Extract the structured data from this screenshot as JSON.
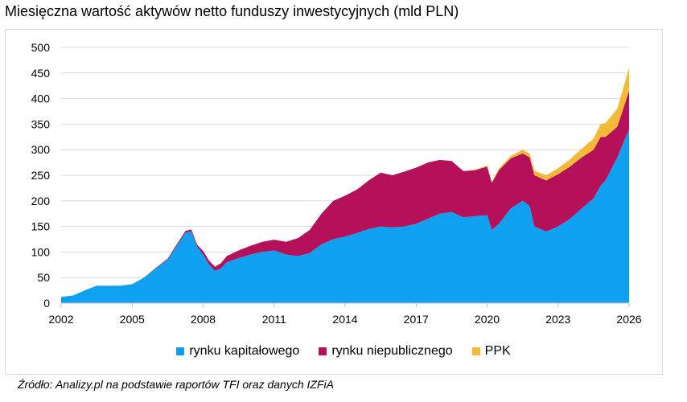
{
  "title": "Miesięczna wartość aktywów netto funduszy inwestycyjnych (mld PLN)",
  "source": "Źródło: Analizy.pl na podstawie raportów TFI oraz danych IZFiA",
  "chart_data": {
    "type": "area",
    "stacked": true,
    "title": "Miesięczna wartość aktywów netto funduszy inwestycyjnych (mld PLN)",
    "xlabel": "",
    "ylabel": "",
    "xlim": [
      2002,
      2026
    ],
    "ylim": [
      0,
      500
    ],
    "x_ticks": [
      "2002",
      "2005",
      "2008",
      "2011",
      "2014",
      "2017",
      "2020",
      "2023",
      "2026"
    ],
    "y_ticks": [
      "0",
      "50",
      "100",
      "150",
      "200",
      "250",
      "300",
      "350",
      "400",
      "450",
      "500"
    ],
    "grid": "horizontal",
    "legend_position": "bottom",
    "x": [
      2002.0,
      2002.5,
      2003.0,
      2003.5,
      2004.0,
      2004.5,
      2005.0,
      2005.5,
      2006.0,
      2006.5,
      2007.0,
      2007.25,
      2007.5,
      2007.75,
      2008.0,
      2008.25,
      2008.5,
      2008.75,
      2009.0,
      2009.5,
      2010.0,
      2010.5,
      2011.0,
      2011.5,
      2012.0,
      2012.5,
      2013.0,
      2013.5,
      2014.0,
      2014.5,
      2015.0,
      2015.5,
      2016.0,
      2016.5,
      2017.0,
      2017.5,
      2018.0,
      2018.5,
      2019.0,
      2019.5,
      2020.0,
      2020.2,
      2020.5,
      2021.0,
      2021.5,
      2021.8,
      2022.0,
      2022.5,
      2023.0,
      2023.5,
      2024.0,
      2024.5,
      2024.8,
      2025.0,
      2025.5,
      2026.0
    ],
    "series": [
      {
        "name": "rynku kapitałowego",
        "color": "#0fa0f0",
        "values": [
          12,
          15,
          25,
          34,
          34,
          34,
          37,
          50,
          68,
          85,
          120,
          138,
          140,
          110,
          95,
          75,
          63,
          68,
          80,
          88,
          95,
          100,
          103,
          95,
          92,
          98,
          115,
          125,
          130,
          137,
          145,
          150,
          148,
          150,
          155,
          165,
          175,
          178,
          168,
          170,
          172,
          143,
          155,
          185,
          200,
          190,
          150,
          140,
          150,
          165,
          185,
          205,
          230,
          240,
          285,
          340
        ]
      },
      {
        "name": "rynku niepublicznego",
        "color": "#b5115a",
        "values": [
          0,
          0,
          0,
          0,
          0,
          0,
          0,
          0,
          1,
          2,
          3,
          3,
          4,
          4,
          7,
          8,
          8,
          10,
          12,
          15,
          17,
          20,
          21,
          25,
          35,
          45,
          60,
          75,
          80,
          85,
          95,
          105,
          102,
          107,
          110,
          110,
          105,
          100,
          90,
          90,
          95,
          92,
          105,
          98,
          93,
          95,
          100,
          100,
          102,
          102,
          100,
          95,
          95,
          85,
          60,
          75
        ]
      },
      {
        "name": "PPK",
        "color": "#f5b93a",
        "values": [
          0,
          0,
          0,
          0,
          0,
          0,
          0,
          0,
          0,
          0,
          0,
          0,
          0,
          0,
          0,
          0,
          0,
          0,
          0,
          0,
          0,
          0,
          0,
          0,
          0,
          0,
          0,
          0,
          0,
          0,
          0,
          0,
          0,
          0,
          0,
          0,
          0,
          0,
          0,
          1,
          2,
          2,
          3,
          5,
          7,
          8,
          9,
          10,
          12,
          14,
          17,
          22,
          25,
          27,
          35,
          45
        ]
      }
    ]
  }
}
